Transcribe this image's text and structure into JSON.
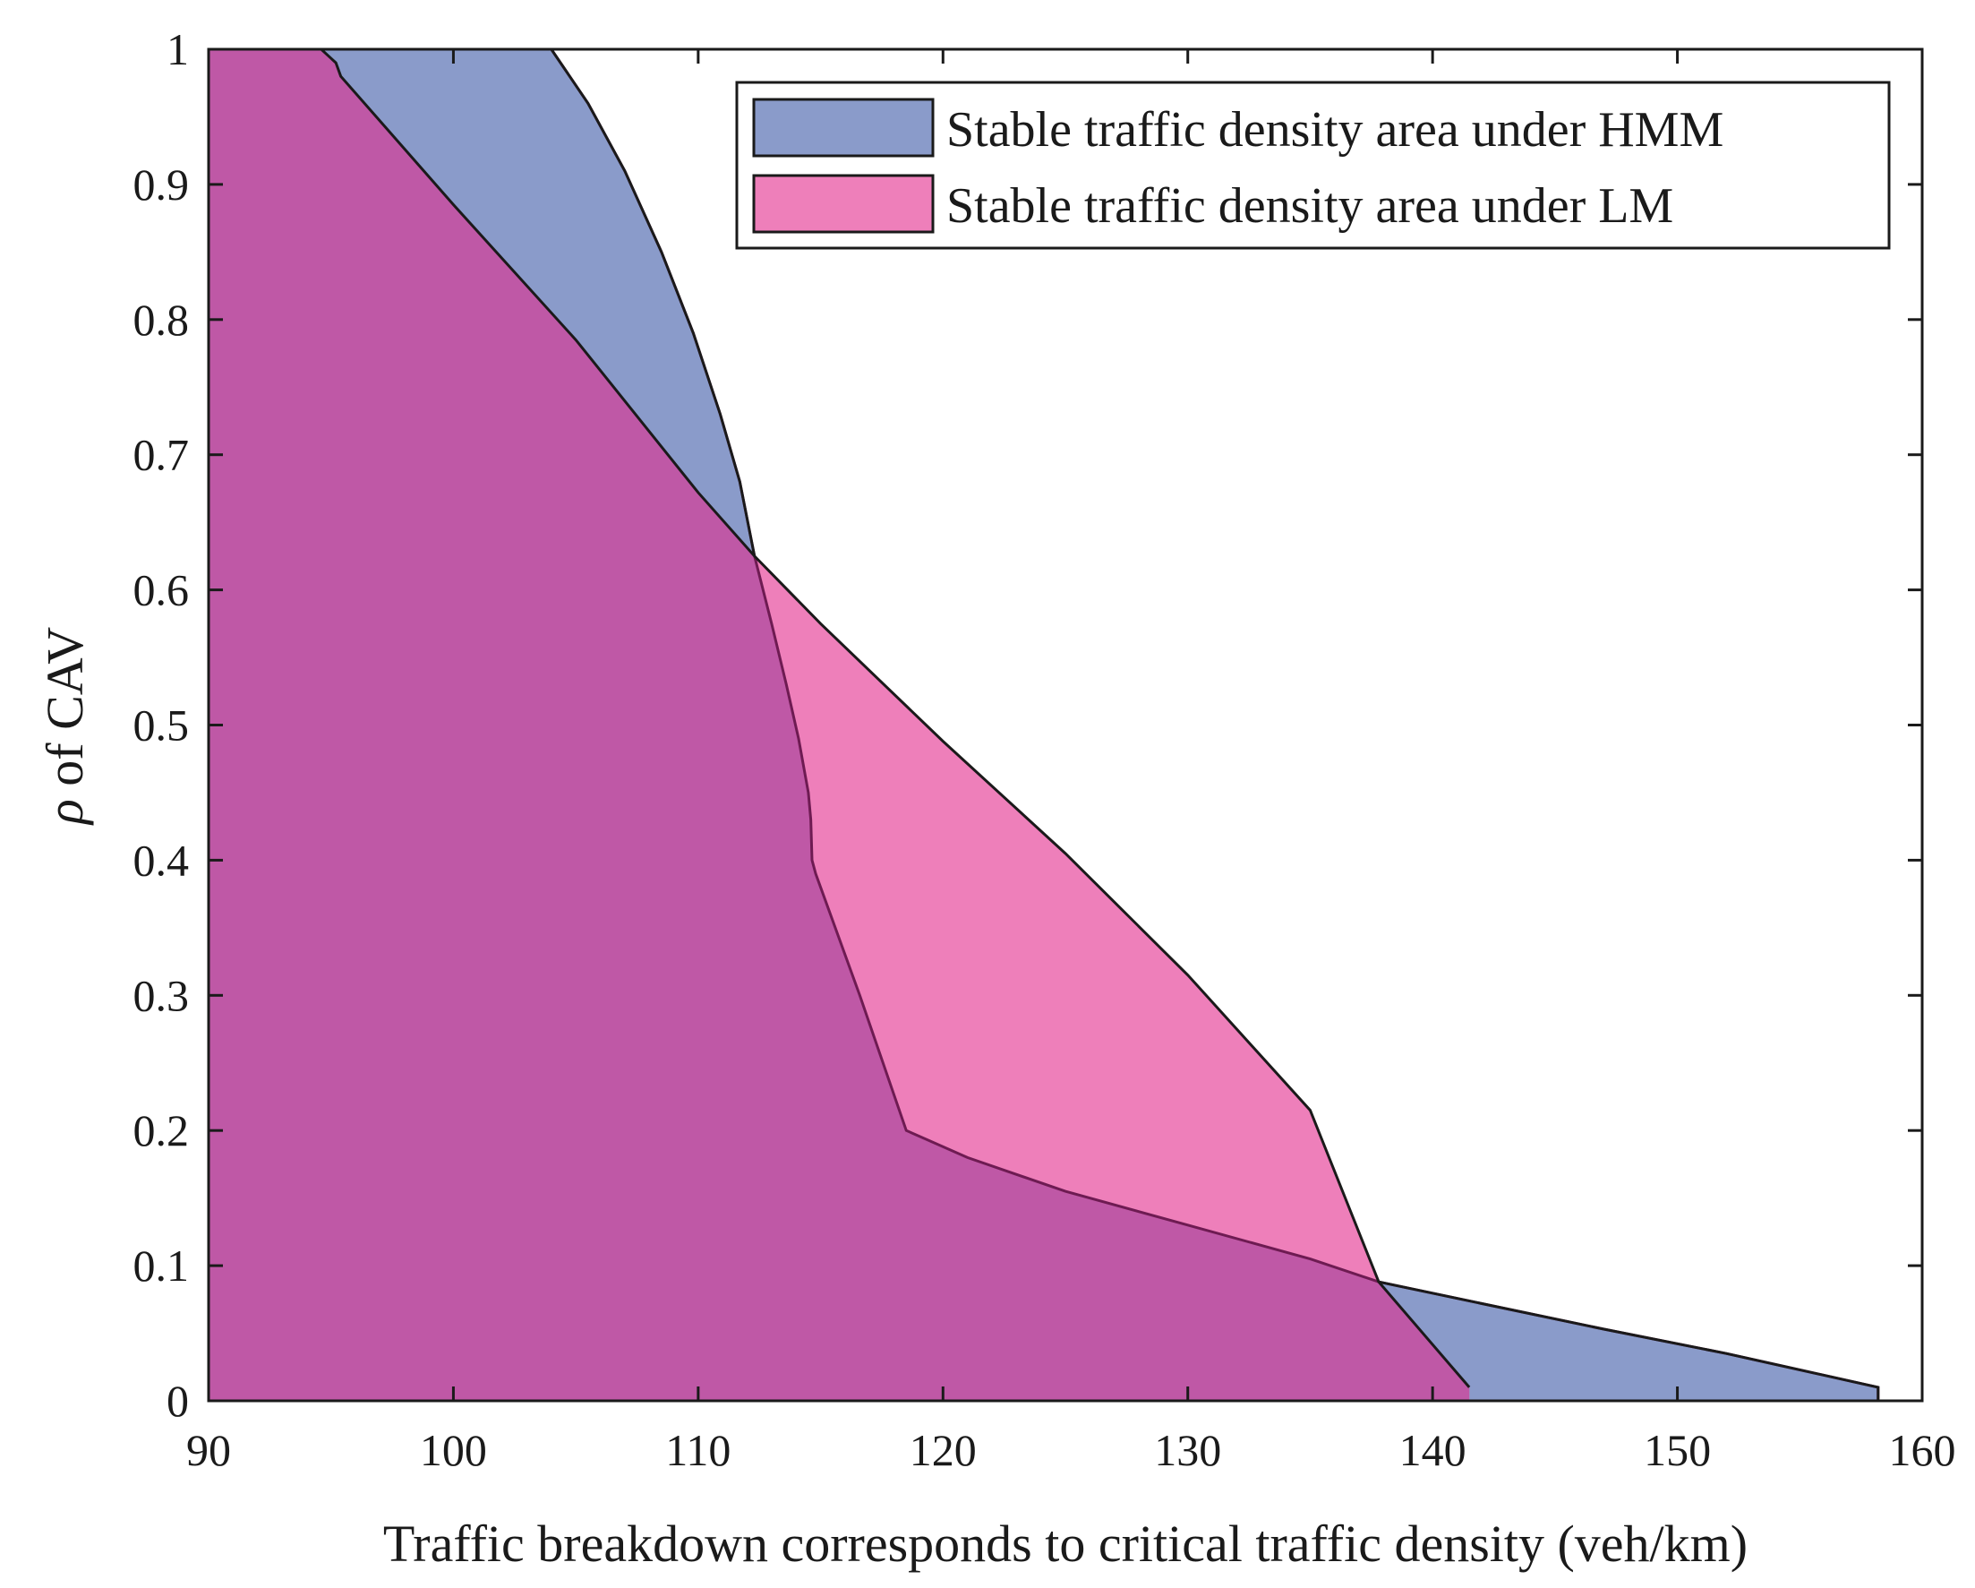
{
  "chart_data": {
    "type": "area",
    "title": "",
    "xlabel": "Traffic breakdown corresponds to critical traffic density (veh/km)",
    "ylabel_symbol": "ρ",
    "ylabel_text": " of CAV",
    "xlim": [
      90,
      160
    ],
    "ylim": [
      0,
      1
    ],
    "xticks": [
      90,
      100,
      110,
      120,
      130,
      140,
      150,
      160
    ],
    "yticks": [
      0,
      0.1,
      0.2,
      0.3,
      0.4,
      0.5,
      0.6,
      0.7,
      0.8,
      0.9,
      1
    ],
    "ytick_labels": [
      "0",
      "0.1",
      "0.2",
      "0.3",
      "0.4",
      "0.5",
      "0.6",
      "0.7",
      "0.8",
      "0.9",
      "1"
    ],
    "legend_position": "top-right",
    "series": [
      {
        "name": "Stable traffic density area under HMM",
        "color": "#8a9bca",
        "boundary": [
          [
            104.0,
            1.0
          ],
          [
            105.5,
            0.96
          ],
          [
            107.0,
            0.91
          ],
          [
            108.5,
            0.85
          ],
          [
            109.8,
            0.79
          ],
          [
            110.9,
            0.73
          ],
          [
            111.7,
            0.68
          ],
          [
            112.3,
            0.625
          ],
          [
            113.0,
            0.575
          ],
          [
            113.6,
            0.53
          ],
          [
            114.1,
            0.49
          ],
          [
            114.5,
            0.45
          ],
          [
            114.6,
            0.43
          ],
          [
            114.65,
            0.4
          ],
          [
            114.8,
            0.39
          ],
          [
            116.6,
            0.3
          ],
          [
            118.5,
            0.2
          ],
          [
            121.0,
            0.18
          ],
          [
            125.0,
            0.155
          ],
          [
            130.0,
            0.13
          ],
          [
            135.0,
            0.105
          ],
          [
            137.8,
            0.088
          ],
          [
            142.0,
            0.072
          ],
          [
            147.0,
            0.053
          ],
          [
            152.0,
            0.035
          ],
          [
            158.2,
            0.01
          ],
          [
            158.2,
            0.0
          ]
        ]
      },
      {
        "name": "Stable traffic density area under LM",
        "color": "#ee7fba",
        "boundary": [
          [
            94.6,
            1.0
          ],
          [
            94.9,
            0.995
          ],
          [
            95.2,
            0.99
          ],
          [
            95.4,
            0.98
          ],
          [
            100.0,
            0.885
          ],
          [
            105.0,
            0.785
          ],
          [
            110.0,
            0.672
          ],
          [
            112.3,
            0.625
          ],
          [
            115.0,
            0.575
          ],
          [
            120.0,
            0.488
          ],
          [
            125.0,
            0.405
          ],
          [
            130.0,
            0.315
          ],
          [
            135.0,
            0.215
          ],
          [
            137.8,
            0.088
          ],
          [
            141.5,
            0.01
          ],
          [
            141.5,
            0.0
          ]
        ]
      }
    ],
    "overlap_color": "#bf58a6"
  }
}
